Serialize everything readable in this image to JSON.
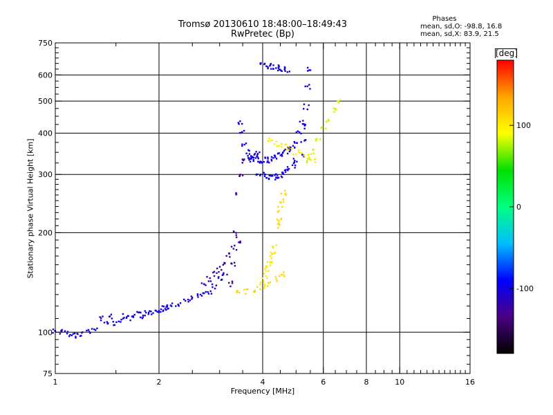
{
  "header": {
    "title_line1": "Tromsø 20130610 18:48:00–18:49:43",
    "title_line2": "RwPretec (Bp)",
    "stats_heading": "Phases",
    "stats_o": "mean, sd,O: -98.8, 16.8",
    "stats_x": "mean, sd,X:  83.9, 21.5"
  },
  "colorbar": {
    "unit_label": "[deg]",
    "ticks": [
      100,
      0,
      -100
    ],
    "range": [
      -180,
      180
    ],
    "colors": [
      "#000000",
      "#4b0082",
      "#0000ff",
      "#00bfff",
      "#00ff7f",
      "#00e000",
      "#ffff00",
      "#ffa500",
      "#ff0000"
    ]
  },
  "chart_data": {
    "type": "scatter",
    "title": "Tromsø 20130610 18:48:00–18:49:43",
    "subtitle": "RwPretec (Bp)",
    "xlabel": "Frequency [MHz]",
    "ylabel": "Stationary phase Virtual Height [km]",
    "x_scale": "log",
    "y_scale": "log",
    "xlim": [
      1,
      16
    ],
    "ylim": [
      75,
      750
    ],
    "x_ticks": [
      1,
      2,
      4,
      6,
      8,
      10,
      16
    ],
    "y_ticks": [
      75,
      100,
      200,
      300,
      400,
      500,
      600,
      750
    ],
    "grid": true,
    "colorbar_label": "[deg]",
    "color_scale": "phase_deg",
    "traces": [
      {
        "x": [
          1.0,
          1.04,
          1.08,
          1.12,
          1.16,
          1.2,
          1.25,
          1.3
        ],
        "y": [
          101,
          100,
          99,
          98,
          98,
          99,
          100,
          102
        ],
        "phase": -100
      },
      {
        "x": [
          1.36,
          1.4,
          1.45,
          1.5,
          1.55,
          1.6,
          1.65,
          1.7,
          1.75,
          1.8,
          1.85,
          1.9,
          1.95,
          2.0,
          2.05,
          2.1
        ],
        "y": [
          110,
          108,
          111,
          107,
          109,
          112,
          110,
          111,
          113,
          112,
          114,
          115,
          116,
          117,
          118,
          119
        ],
        "phase": -100
      },
      {
        "x": [
          2.1,
          2.2,
          2.3,
          2.4,
          2.5,
          2.6,
          2.7,
          2.8,
          2.9,
          3.0,
          3.1
        ],
        "y": [
          119,
          120,
          122,
          124,
          126,
          128,
          130,
          133,
          138,
          145,
          150
        ],
        "phase": -100
      },
      {
        "x": [
          2.7,
          2.8,
          2.9,
          3.0,
          3.1,
          3.2,
          3.3,
          3.4
        ],
        "y": [
          140,
          145,
          150,
          155,
          160,
          170,
          180,
          190
        ],
        "phase": -120
      },
      {
        "x": [
          3.25,
          3.3,
          3.35,
          3.4,
          3.45,
          3.5
        ],
        "y": [
          140,
          160,
          200,
          260,
          300,
          330
        ],
        "phase": -130
      },
      {
        "x": [
          3.45,
          3.5,
          3.55,
          3.6,
          3.65,
          3.7,
          3.75,
          3.8,
          3.85,
          3.9
        ],
        "y": [
          430,
          400,
          370,
          350,
          340,
          336,
          334,
          335,
          340,
          345
        ],
        "phase": -100
      },
      {
        "x": [
          3.9,
          4.0,
          4.1,
          4.2,
          4.3,
          4.4,
          4.5,
          4.6,
          4.7,
          4.8,
          4.9,
          5.0
        ],
        "y": [
          300,
          298,
          296,
          295,
          295,
          296,
          297,
          300,
          305,
          312,
          320,
          330
        ],
        "phase": -100
      },
      {
        "x": [
          3.9,
          4.0,
          4.1,
          4.2,
          4.3,
          4.4,
          4.5,
          4.6,
          4.7,
          4.8,
          4.9,
          5.0,
          5.1,
          5.2
        ],
        "y": [
          330,
          330,
          332,
          334,
          337,
          340,
          343,
          347,
          352,
          358,
          365,
          380,
          400,
          430
        ],
        "phase": -100
      },
      {
        "x": [
          5.2,
          5.25,
          5.3,
          5.35,
          5.4,
          5.45
        ],
        "y": [
          340,
          380,
          420,
          480,
          550,
          620
        ],
        "phase": -100
      },
      {
        "x": [
          3.4,
          3.6,
          3.8,
          4.0,
          4.2,
          4.4,
          4.6
        ],
        "y": [
          132,
          133,
          135,
          137,
          140,
          145,
          150
        ],
        "phase": 110
      },
      {
        "x": [
          4.0,
          4.05,
          4.1,
          4.15,
          4.2,
          4.25,
          4.3,
          4.35
        ],
        "y": [
          140,
          148,
          155,
          160,
          165,
          170,
          175,
          180
        ],
        "phase": 100
      },
      {
        "x": [
          4.4,
          4.45,
          4.5,
          4.55,
          4.6
        ],
        "y": [
          210,
          220,
          235,
          250,
          265
        ],
        "phase": 110
      },
      {
        "x": [
          4.2,
          4.4,
          4.6,
          4.8,
          5.0,
          5.2,
          5.4,
          5.6
        ],
        "y": [
          380,
          370,
          365,
          360,
          350,
          345,
          340,
          330
        ],
        "phase": 100
      },
      {
        "x": [
          5.4,
          5.6,
          5.8,
          6.0,
          6.2,
          6.4,
          6.6
        ],
        "y": [
          330,
          350,
          380,
          410,
          440,
          470,
          500
        ],
        "phase": 80
      },
      {
        "x": [
          4.0,
          4.1,
          4.2,
          4.3,
          4.4,
          4.5,
          4.6,
          4.7
        ],
        "y": [
          640,
          638,
          636,
          632,
          630,
          626,
          622,
          618
        ],
        "phase": -100
      }
    ]
  }
}
